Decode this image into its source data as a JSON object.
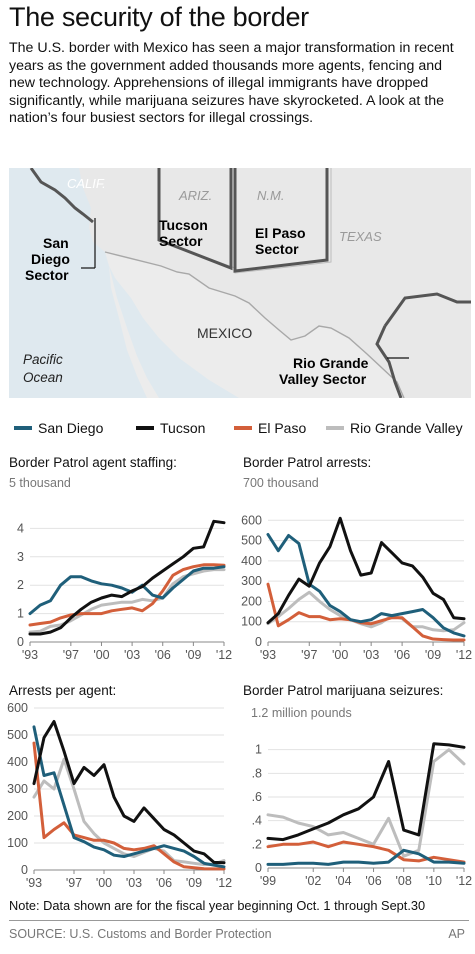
{
  "title": "The security of the border",
  "intro": "The U.S. border with Mexico has seen a major transformation in recent years as the government added thousands more agents, fencing and new technology. Apprehensions of illegal immigrants have dropped significantly, while marijuana seizures have skyrocketed. A look at the nation’s four busiest sectors for illegal crossings.",
  "map": {
    "states": [
      "CALIF.",
      "ARIZ.",
      "N.M.",
      "TEXAS"
    ],
    "country": "MEXICO",
    "ocean": [
      "Pacific",
      "Ocean"
    ],
    "sectors": {
      "san_diego": [
        "San",
        "Diego",
        "Sector"
      ],
      "tucson": [
        "Tucson",
        "Sector"
      ],
      "el_paso": [
        "El Paso",
        "Sector"
      ],
      "rio_grande": [
        "Rio Grande",
        "Valley Sector"
      ]
    }
  },
  "legend": [
    {
      "name": "San Diego",
      "color": "#1f5f7a"
    },
    {
      "name": "Tucson",
      "color": "#111111"
    },
    {
      "name": "El Paso",
      "color": "#d35f3a"
    },
    {
      "name": "Rio Grande Valley",
      "color": "#bdbdbd"
    }
  ],
  "note": "Note: Data shown are for the fiscal year beginning Oct. 1 through Sept.30",
  "source": "SOURCE: U.S. Customs and Border Protection",
  "credit": "AP",
  "chart_data": [
    {
      "type": "line",
      "title": "Border Patrol agent staffing:",
      "unit_label": "5 thousand",
      "x": [
        1993,
        1994,
        1995,
        1996,
        1997,
        1998,
        1999,
        2000,
        2001,
        2002,
        2003,
        2004,
        2005,
        2006,
        2007,
        2008,
        2009,
        2010,
        2011,
        2012
      ],
      "x_tick_labels": [
        "'93",
        "'97",
        "'00",
        "'03",
        "'06",
        "'09",
        "'12"
      ],
      "x_tick_values": [
        1993,
        1997,
        2000,
        2003,
        2006,
        2009,
        2012
      ],
      "y_ticks": [
        0,
        1,
        2,
        3,
        4
      ],
      "ylim": [
        0,
        5
      ],
      "series": [
        {
          "name": "San Diego",
          "values": [
            1.0,
            1.3,
            1.45,
            2.0,
            2.3,
            2.3,
            2.15,
            2.05,
            2.0,
            1.9,
            1.75,
            2.0,
            1.65,
            1.55,
            1.9,
            2.2,
            2.5,
            2.6,
            2.6,
            2.65
          ]
        },
        {
          "name": "Tucson",
          "values": [
            0.28,
            0.28,
            0.35,
            0.5,
            0.85,
            1.15,
            1.4,
            1.55,
            1.65,
            1.6,
            1.8,
            1.95,
            2.25,
            2.5,
            2.75,
            3.0,
            3.3,
            3.35,
            4.25,
            4.2
          ]
        },
        {
          "name": "El Paso",
          "values": [
            0.6,
            0.65,
            0.7,
            0.85,
            0.95,
            1.0,
            1.0,
            1.0,
            1.1,
            1.15,
            1.2,
            1.1,
            1.35,
            1.8,
            2.35,
            2.55,
            2.65,
            2.72,
            2.72,
            2.7
          ]
        },
        {
          "name": "Rio Grande Valley",
          "values": [
            0.35,
            0.38,
            0.55,
            0.6,
            0.75,
            0.95,
            1.15,
            1.3,
            1.35,
            1.4,
            1.4,
            1.5,
            1.45,
            1.55,
            2.05,
            2.3,
            2.4,
            2.5,
            2.55,
            2.55
          ]
        }
      ]
    },
    {
      "type": "line",
      "title": "Border Patrol arrests:",
      "unit_label": "700 thousand",
      "x": [
        1993,
        1994,
        1995,
        1996,
        1997,
        1998,
        1999,
        2000,
        2001,
        2002,
        2003,
        2004,
        2005,
        2006,
        2007,
        2008,
        2009,
        2010,
        2011,
        2012
      ],
      "x_tick_labels": [
        "'93",
        "'97",
        "'00",
        "'03",
        "'06",
        "'09",
        "'12"
      ],
      "x_tick_values": [
        1993,
        1997,
        2000,
        2003,
        2006,
        2009,
        2012
      ],
      "y_ticks": [
        0,
        100,
        200,
        300,
        400,
        500,
        600
      ],
      "ylim": [
        0,
        700
      ],
      "series": [
        {
          "name": "San Diego",
          "values": [
            530,
            450,
            525,
            485,
            285,
            250,
            180,
            150,
            110,
            100,
            110,
            140,
            130,
            140,
            150,
            160,
            120,
            70,
            45,
            30
          ]
        },
        {
          "name": "Tucson",
          "values": [
            95,
            140,
            230,
            310,
            275,
            390,
            470,
            610,
            450,
            330,
            340,
            490,
            440,
            390,
            375,
            320,
            240,
            210,
            120,
            115
          ]
        },
        {
          "name": "El Paso",
          "values": [
            285,
            80,
            110,
            145,
            125,
            125,
            110,
            115,
            110,
            95,
            90,
            105,
            120,
            120,
            75,
            30,
            15,
            12,
            10,
            10
          ]
        },
        {
          "name": "Rio Grande Valley",
          "values": [
            90,
            125,
            165,
            210,
            245,
            200,
            160,
            130,
            110,
            90,
            75,
            95,
            130,
            115,
            75,
            75,
            60,
            55,
            60,
            95
          ]
        }
      ]
    },
    {
      "type": "line",
      "title": "Arrests per agent:",
      "x": [
        1993,
        1994,
        1995,
        1996,
        1997,
        1998,
        1999,
        2000,
        2001,
        2002,
        2003,
        2004,
        2005,
        2006,
        2007,
        2008,
        2009,
        2010,
        2011,
        2012
      ],
      "x_tick_labels": [
        "'93",
        "'97",
        "'00",
        "'03",
        "'06",
        "'09",
        "'12"
      ],
      "x_tick_values": [
        1993,
        1997,
        2000,
        2003,
        2006,
        2009,
        2012
      ],
      "y_ticks": [
        0,
        100,
        200,
        300,
        400,
        500,
        600
      ],
      "ylim": [
        0,
        600
      ],
      "series": [
        {
          "name": "San Diego",
          "values": [
            530,
            350,
            360,
            240,
            120,
            105,
            85,
            75,
            55,
            50,
            60,
            70,
            80,
            90,
            80,
            70,
            50,
            25,
            18,
            12
          ]
        },
        {
          "name": "Tucson",
          "values": [
            320,
            490,
            550,
            440,
            320,
            380,
            350,
            390,
            270,
            200,
            180,
            230,
            190,
            150,
            130,
            100,
            70,
            60,
            28,
            27
          ]
        },
        {
          "name": "El Paso",
          "values": [
            470,
            120,
            150,
            175,
            130,
            120,
            110,
            110,
            100,
            80,
            75,
            80,
            90,
            60,
            30,
            12,
            8,
            5,
            4,
            4
          ]
        },
        {
          "name": "Rio Grande Valley",
          "values": [
            270,
            330,
            300,
            410,
            300,
            180,
            135,
            100,
            80,
            60,
            50,
            65,
            80,
            70,
            35,
            30,
            25,
            20,
            22,
            35
          ]
        }
      ]
    },
    {
      "type": "line",
      "title": "Border Patrol marijuana seizures:",
      "unit_label": "1.2 million pounds",
      "x": [
        1999,
        2000,
        2001,
        2002,
        2003,
        2004,
        2005,
        2006,
        2007,
        2008,
        2009,
        2010,
        2011,
        2012
      ],
      "x_tick_labels": [
        "'99",
        "'02",
        "'04",
        "'06",
        "'08",
        "'10",
        "'12"
      ],
      "x_tick_values": [
        1999,
        2002,
        2004,
        2006,
        2008,
        2010,
        2012
      ],
      "y_ticks": [
        0,
        0.2,
        0.4,
        0.6,
        0.8,
        1
      ],
      "y_tick_labels": [
        "0",
        ".2",
        ".4",
        ".6",
        ".8",
        "1"
      ],
      "ylim": [
        0,
        1.2
      ],
      "series": [
        {
          "name": "San Diego",
          "values": [
            0.03,
            0.03,
            0.04,
            0.04,
            0.03,
            0.05,
            0.05,
            0.04,
            0.05,
            0.15,
            0.12,
            0.05,
            0.05,
            0.04
          ]
        },
        {
          "name": "Tucson",
          "values": [
            0.25,
            0.24,
            0.28,
            0.33,
            0.38,
            0.45,
            0.5,
            0.6,
            0.9,
            0.32,
            0.28,
            1.05,
            1.04,
            1.02
          ]
        },
        {
          "name": "El Paso",
          "values": [
            0.18,
            0.2,
            0.2,
            0.22,
            0.18,
            0.22,
            0.2,
            0.18,
            0.15,
            0.07,
            0.06,
            0.09,
            0.07,
            0.05
          ]
        },
        {
          "name": "Rio Grande Valley",
          "values": [
            0.45,
            0.43,
            0.38,
            0.35,
            0.28,
            0.3,
            0.25,
            0.2,
            0.42,
            0.1,
            0.15,
            0.9,
            1.0,
            0.88
          ]
        }
      ]
    }
  ]
}
